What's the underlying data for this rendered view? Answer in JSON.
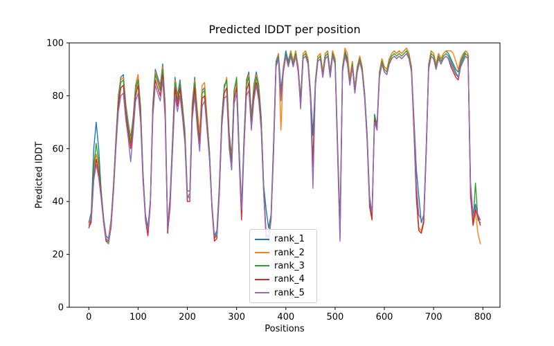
{
  "figure": {
    "title": "Predicted lDDT per position",
    "xlabel": "Positions",
    "ylabel": "Predicted lDDT"
  },
  "chart_data": {
    "type": "line",
    "title": "Predicted lDDT per position",
    "xlabel": "Positions",
    "ylabel": "Predicted lDDT",
    "xlim": [
      -39.75,
      834.75
    ],
    "ylim": [
      0,
      100
    ],
    "x_ticks": [
      0,
      100,
      200,
      300,
      400,
      500,
      600,
      700,
      800
    ],
    "y_ticks": [
      0,
      20,
      40,
      60,
      80,
      100
    ],
    "grid": false,
    "legend_position": "lower-center-inside",
    "x_start": 0,
    "x_step": 5,
    "series": [
      {
        "name": "rank_1",
        "color": "#1f77b4",
        "values": [
          32,
          36,
          60,
          70,
          60,
          44,
          34,
          27,
          26,
          33,
          46,
          64,
          80,
          87,
          88,
          77,
          70,
          64,
          72,
          84,
          88,
          76,
          51,
          35,
          30,
          41,
          77,
          90,
          87,
          84,
          92,
          77,
          30,
          42,
          64,
          87,
          80,
          86,
          77,
          67,
          44,
          44,
          77,
          87,
          74,
          64,
          82,
          83,
          71,
          59,
          39,
          27,
          29,
          47,
          72,
          84,
          86,
          66,
          57,
          82,
          86,
          61,
          38,
          64,
          86,
          89,
          72,
          84,
          89,
          84,
          72,
          46,
          37,
          30,
          35,
          62,
          93,
          96,
          82,
          91,
          97,
          93,
          97,
          93,
          97,
          91,
          79,
          96,
          97,
          94,
          82,
          65,
          86,
          95,
          96,
          89,
          96,
          97,
          89,
          97,
          94,
          62,
          32,
          91,
          97,
          94,
          86,
          93,
          83,
          91,
          95,
          91,
          81,
          66,
          42,
          35,
          73,
          69,
          89,
          94,
          91,
          90,
          94,
          96,
          97,
          96,
          97,
          96,
          97,
          98,
          96,
          91,
          72,
          52,
          42,
          32,
          35,
          61,
          92,
          97,
          96,
          92,
          96,
          94,
          96,
          97,
          96,
          94,
          92,
          90,
          89,
          93,
          95,
          97,
          96,
          47,
          35,
          39,
          34,
          33
        ]
      },
      {
        "name": "rank_2",
        "color": "#ff7f0e",
        "values": [
          31,
          34,
          52,
          58,
          53,
          43,
          33,
          26,
          25,
          32,
          46,
          63,
          79,
          86,
          87,
          76,
          69,
          63,
          71,
          83,
          88,
          75,
          50,
          34,
          28,
          40,
          76,
          89,
          86,
          83,
          91,
          76,
          28,
          39,
          63,
          86,
          79,
          85,
          76,
          66,
          42,
          43,
          76,
          86,
          75,
          66,
          84,
          85,
          72,
          58,
          38,
          26,
          27,
          46,
          71,
          83,
          87,
          65,
          56,
          81,
          85,
          59,
          35,
          63,
          85,
          88,
          71,
          83,
          88,
          83,
          71,
          45,
          27,
          27,
          34,
          60,
          92,
          96,
          67,
          91,
          96,
          92,
          97,
          93,
          97,
          91,
          78,
          96,
          97,
          94,
          81,
          55,
          86,
          95,
          96,
          89,
          96,
          97,
          88,
          97,
          94,
          61,
          29,
          90,
          98,
          96,
          87,
          93,
          83,
          91,
          95,
          91,
          80,
          64,
          39,
          34,
          72,
          68,
          89,
          94,
          91,
          90,
          94,
          96,
          97,
          96,
          97,
          96,
          97,
          98,
          96,
          91,
          70,
          44,
          30,
          29,
          33,
          59,
          92,
          97,
          96,
          92,
          96,
          94,
          96,
          97,
          97,
          97,
          96,
          93,
          90,
          94,
          96,
          97,
          96,
          44,
          31,
          36,
          28,
          24
        ]
      },
      {
        "name": "rank_3",
        "color": "#2ca02c",
        "values": [
          30,
          33,
          53,
          62,
          55,
          44,
          32,
          25,
          24,
          30,
          45,
          62,
          78,
          85,
          86,
          75,
          68,
          62,
          70,
          82,
          86,
          74,
          50,
          34,
          28,
          40,
          75,
          88,
          85,
          82,
          90,
          74,
          29,
          40,
          62,
          85,
          78,
          85,
          75,
          65,
          42,
          42,
          75,
          85,
          73,
          62,
          81,
          82,
          70,
          58,
          38,
          26,
          28,
          45,
          71,
          83,
          86,
          64,
          55,
          82,
          87,
          60,
          36,
          62,
          84,
          87,
          70,
          82,
          87,
          82,
          70,
          45,
          28,
          26,
          34,
          61,
          92,
          95,
          80,
          90,
          96,
          92,
          96,
          92,
          96,
          90,
          78,
          95,
          96,
          93,
          80,
          55,
          85,
          94,
          95,
          88,
          95,
          96,
          88,
          96,
          93,
          60,
          28,
          90,
          96,
          93,
          85,
          92,
          82,
          90,
          94,
          90,
          80,
          65,
          40,
          34,
          72,
          68,
          88,
          93,
          90,
          89,
          93,
          95,
          96,
          95,
          96,
          95,
          96,
          97,
          95,
          90,
          68,
          42,
          29,
          28,
          33,
          60,
          91,
          96,
          95,
          91,
          95,
          93,
          95,
          96,
          95,
          93,
          91,
          89,
          87,
          92,
          94,
          96,
          95,
          43,
          32,
          47,
          33,
          32
        ]
      },
      {
        "name": "rank_4",
        "color": "#d62728",
        "values": [
          30,
          33,
          49,
          56,
          51,
          42,
          32,
          25,
          25,
          30,
          44,
          61,
          76,
          83,
          84,
          73,
          66,
          60,
          68,
          80,
          84,
          72,
          48,
          33,
          27,
          39,
          73,
          86,
          83,
          80,
          88,
          73,
          28,
          38,
          60,
          83,
          76,
          83,
          73,
          63,
          40,
          40,
          73,
          83,
          70,
          61,
          79,
          80,
          68,
          56,
          37,
          25,
          26,
          43,
          69,
          81,
          83,
          62,
          52,
          79,
          83,
          57,
          33,
          60,
          82,
          85,
          68,
          80,
          85,
          80,
          68,
          43,
          26,
          25,
          33,
          58,
          91,
          94,
          79,
          89,
          95,
          91,
          95,
          91,
          95,
          89,
          76,
          94,
          95,
          92,
          79,
          53,
          84,
          93,
          94,
          87,
          94,
          95,
          87,
          95,
          92,
          59,
          26,
          89,
          95,
          92,
          84,
          91,
          81,
          89,
          93,
          89,
          79,
          63,
          38,
          33,
          71,
          67,
          87,
          92,
          89,
          88,
          92,
          94,
          95,
          94,
          95,
          94,
          95,
          96,
          94,
          89,
          67,
          41,
          29,
          28,
          32,
          58,
          90,
          95,
          94,
          90,
          94,
          92,
          94,
          95,
          94,
          91,
          89,
          87,
          86,
          91,
          93,
          95,
          94,
          42,
          31,
          37,
          34,
          31
        ]
      },
      {
        "name": "rank_5",
        "color": "#9467bd",
        "values": [
          30,
          32,
          48,
          54,
          49,
          41,
          32,
          26,
          25,
          30,
          43,
          60,
          74,
          80,
          81,
          71,
          64,
          55,
          66,
          78,
          81,
          70,
          48,
          34,
          29,
          40,
          72,
          84,
          81,
          78,
          86,
          71,
          29,
          41,
          59,
          80,
          74,
          80,
          72,
          62,
          42,
          41,
          71,
          80,
          68,
          59,
          76,
          78,
          67,
          56,
          38,
          27,
          27,
          44,
          68,
          79,
          80,
          60,
          52,
          77,
          81,
          58,
          37,
          60,
          80,
          82,
          67,
          78,
          84,
          78,
          67,
          43,
          27,
          26,
          33,
          58,
          91,
          94,
          78,
          90,
          95,
          91,
          95,
          91,
          95,
          90,
          75,
          94,
          95,
          92,
          79,
          45,
          84,
          93,
          94,
          87,
          94,
          95,
          87,
          95,
          92,
          58,
          25,
          89,
          95,
          92,
          84,
          91,
          81,
          89,
          93,
          89,
          79,
          64,
          40,
          36,
          70,
          67,
          87,
          92,
          89,
          88,
          92,
          94,
          95,
          94,
          95,
          94,
          95,
          96,
          94,
          89,
          70,
          46,
          35,
          33,
          34,
          59,
          90,
          95,
          94,
          90,
          94,
          92,
          94,
          95,
          94,
          92,
          90,
          88,
          87,
          91,
          93,
          95,
          94,
          46,
          34,
          38,
          35,
          33
        ]
      }
    ]
  }
}
